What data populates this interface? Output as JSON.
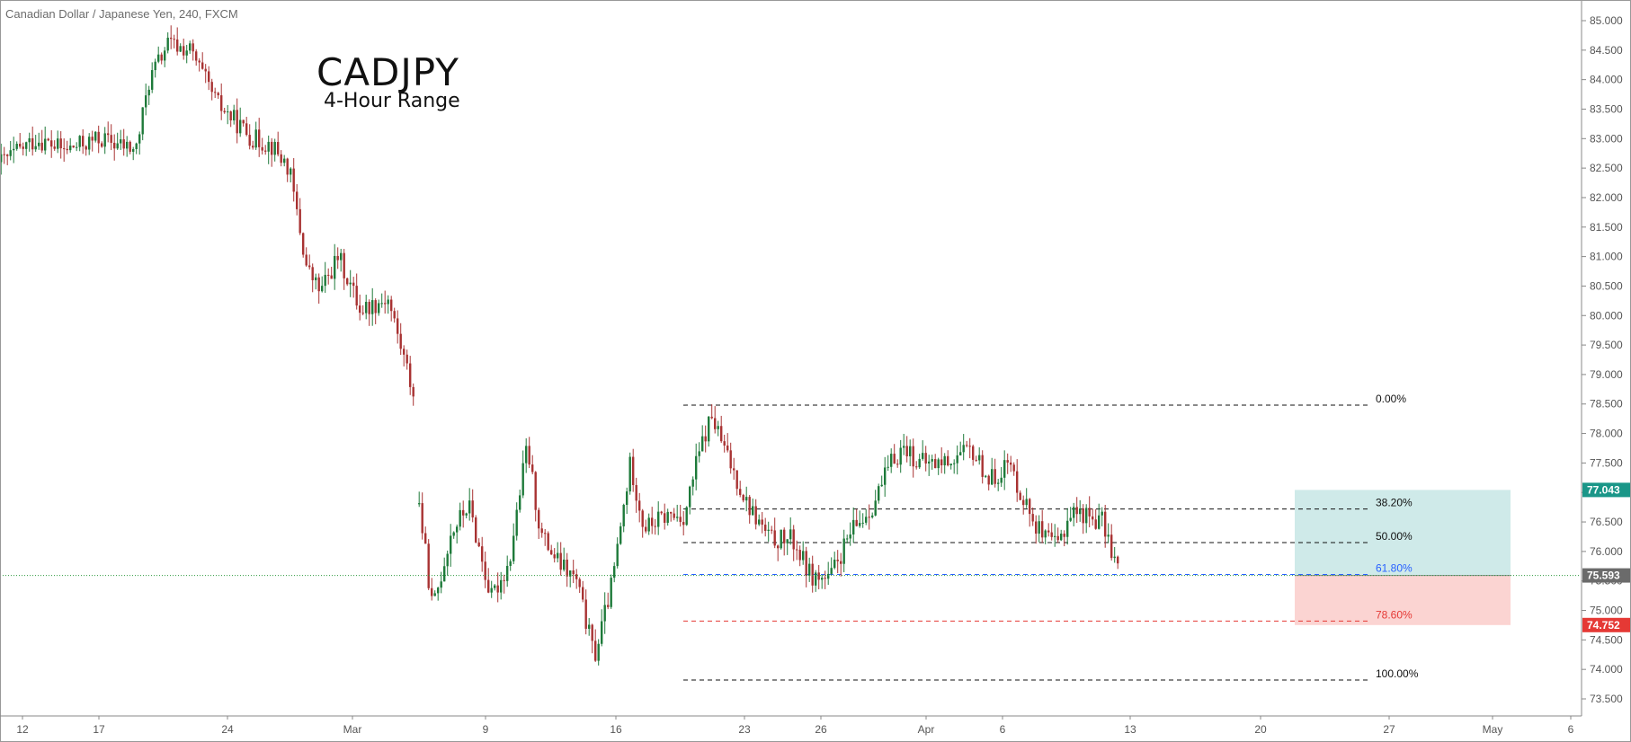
{
  "header": {
    "instrument": "Canadian Dollar / Japanese Yen, 240, FXCM"
  },
  "annotation": {
    "title": "CADJPY",
    "subtitle": "4-Hour Range"
  },
  "colors": {
    "up": "#1e7a3a",
    "down": "#a83232",
    "axis": "#555555",
    "tp_zone": "#cfeae9",
    "sl_zone": "#fbd4d2",
    "tag_green": "#1a9688",
    "tag_gray": "#6b6b6b",
    "tag_red": "#e53935"
  },
  "chart_data": {
    "type": "candlestick",
    "x_axis": {
      "tick_labels": [
        "12",
        "17",
        "24",
        "Mar",
        "9",
        "16",
        "23",
        "26",
        "Apr",
        "6",
        "13",
        "20",
        "27",
        "May",
        "6"
      ],
      "x_range": [
        -2,
        1798
      ]
    },
    "y_axis": {
      "ylim": [
        73.3,
        85.2
      ],
      "tick_values": [
        85.0,
        84.5,
        84.0,
        83.5,
        83.0,
        82.5,
        82.0,
        81.5,
        81.0,
        80.5,
        80.0,
        79.5,
        79.0,
        78.5,
        78.0,
        77.5,
        77.0,
        76.5,
        76.0,
        75.5,
        75.0,
        74.5,
        74.0,
        73.5
      ],
      "tick_labels": [
        "85.000",
        "84.500",
        "84.000",
        "83.500",
        "83.000",
        "82.500",
        "82.000",
        "81.500",
        "81.000",
        "80.500",
        "80.000",
        "79.500",
        "79.000",
        "78.500",
        "78.000",
        "77.500",
        "77.000",
        "76.500",
        "76.000",
        "75.500",
        "75.000",
        "74.500",
        "74.000",
        "73.500"
      ]
    },
    "price_path": [
      [
        0,
        82.6
      ],
      [
        40,
        83.0
      ],
      [
        70,
        82.8
      ],
      [
        110,
        83.0
      ],
      [
        150,
        82.8
      ],
      [
        165,
        84.0
      ],
      [
        185,
        84.6
      ],
      [
        210,
        84.5
      ],
      [
        240,
        83.6
      ],
      [
        280,
        83.0
      ],
      [
        300,
        82.9
      ],
      [
        320,
        82.5
      ],
      [
        340,
        80.8
      ],
      [
        355,
        80.4
      ],
      [
        375,
        81.0
      ],
      [
        400,
        80.1
      ],
      [
        430,
        80.3
      ],
      [
        460,
        78.6
      ],
      null,
      [
        465,
        76.8
      ],
      [
        480,
        75.0
      ],
      [
        500,
        76.3
      ],
      [
        520,
        76.8
      ],
      [
        545,
        75.2
      ],
      [
        565,
        75.8
      ],
      [
        585,
        77.8
      ],
      [
        600,
        76.3
      ],
      [
        620,
        75.8
      ],
      [
        640,
        75.5
      ],
      [
        660,
        74.2
      ],
      [
        680,
        75.5
      ],
      [
        700,
        77.5
      ],
      [
        715,
        76.4
      ],
      [
        740,
        76.6
      ],
      [
        760,
        76.6
      ],
      [
        775,
        77.6
      ],
      [
        790,
        78.3
      ],
      [
        805,
        77.7
      ],
      [
        830,
        76.8
      ],
      [
        855,
        76.2
      ],
      [
        880,
        76.2
      ],
      [
        900,
        75.6
      ],
      [
        920,
        75.5
      ],
      [
        945,
        76.3
      ],
      [
        970,
        76.8
      ],
      [
        990,
        77.5
      ],
      [
        1005,
        77.8
      ],
      [
        1020,
        77.5
      ],
      [
        1045,
        77.5
      ],
      [
        1080,
        77.7
      ],
      [
        1100,
        77.2
      ],
      [
        1120,
        77.5
      ],
      [
        1140,
        76.8
      ],
      [
        1160,
        76.2
      ],
      [
        1175,
        76.1
      ],
      [
        1190,
        76.7
      ],
      [
        1210,
        76.6
      ],
      [
        1225,
        76.5
      ],
      [
        1245,
        75.6
      ]
    ],
    "fib_levels": [
      {
        "label": "0.00%",
        "value": 78.48,
        "color": "#111111"
      },
      {
        "label": "38.20%",
        "value": 76.72,
        "color": "#111111"
      },
      {
        "label": "50.00%",
        "value": 76.15,
        "color": "#111111"
      },
      {
        "label": "61.80%",
        "value": 75.61,
        "color": "#2962ff"
      },
      {
        "label": "78.60%",
        "value": 74.82,
        "color": "#e53935"
      },
      {
        "label": "100.00%",
        "value": 73.82,
        "color": "#111111"
      }
    ],
    "position": {
      "entry": 75.593,
      "target": 77.043,
      "stop": 74.752
    },
    "price_tags": [
      {
        "label": "77.043",
        "value": 77.043,
        "kind": "tag_green"
      },
      {
        "label": "75.593",
        "value": 75.593,
        "kind": "tag_gray"
      },
      {
        "label": "74.752",
        "value": 74.752,
        "kind": "tag_red"
      }
    ],
    "current_price": 75.593
  }
}
